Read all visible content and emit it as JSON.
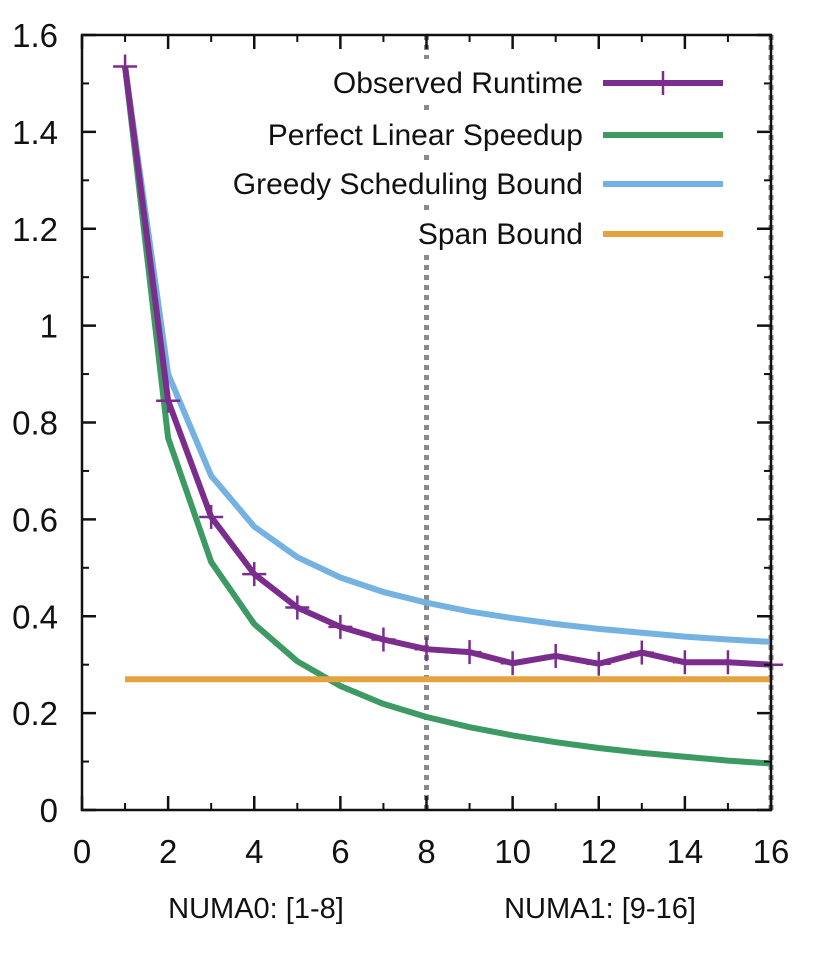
{
  "chart_data": {
    "type": "line",
    "xlim": [
      0,
      16
    ],
    "ylim": [
      0,
      1.6
    ],
    "xticks": [
      "0",
      "2",
      "4",
      "6",
      "8",
      "10",
      "12",
      "14",
      "16"
    ],
    "yticks": [
      "0",
      "0.2",
      "0.4",
      "0.6",
      "0.8",
      "1",
      "1.2",
      "1.4",
      "1.6"
    ],
    "grid": false,
    "legend_position": "top-right",
    "vertical_line_x": 8,
    "group_labels": [
      "NUMA0: [1-8]",
      "NUMA1: [9-16]"
    ],
    "series": [
      {
        "name": "Observed Runtime",
        "color": "#7b2d8e",
        "marker": "plus",
        "x": [
          1,
          2,
          3,
          4,
          5,
          6,
          7,
          8,
          9,
          10,
          11,
          12,
          13,
          14,
          15,
          16
        ],
        "y": [
          1.535,
          0.845,
          0.605,
          0.487,
          0.418,
          0.378,
          0.352,
          0.332,
          0.326,
          0.303,
          0.318,
          0.302,
          0.325,
          0.305,
          0.305,
          0.3
        ]
      },
      {
        "name": "Perfect Linear Speedup",
        "color": "#3e9a63",
        "x": [
          1,
          2,
          3,
          4,
          5,
          6,
          7,
          8,
          9,
          10,
          11,
          12,
          13,
          14,
          15,
          16
        ],
        "y": [
          1.535,
          0.768,
          0.512,
          0.384,
          0.307,
          0.256,
          0.219,
          0.192,
          0.171,
          0.154,
          0.14,
          0.128,
          0.118,
          0.11,
          0.102,
          0.096
        ]
      },
      {
        "name": "Greedy Scheduling Bound",
        "color": "#74b2e2",
        "x": [
          1,
          2,
          3,
          4,
          5,
          6,
          7,
          8,
          9,
          10,
          11,
          12,
          13,
          14,
          15,
          16
        ],
        "y": [
          1.535,
          0.9,
          0.69,
          0.585,
          0.522,
          0.48,
          0.45,
          0.428,
          0.41,
          0.396,
          0.384,
          0.374,
          0.366,
          0.358,
          0.352,
          0.347
        ]
      },
      {
        "name": "Span Bound",
        "color": "#e3a33f",
        "x": [
          1,
          16
        ],
        "y": [
          0.27,
          0.27
        ]
      }
    ]
  }
}
